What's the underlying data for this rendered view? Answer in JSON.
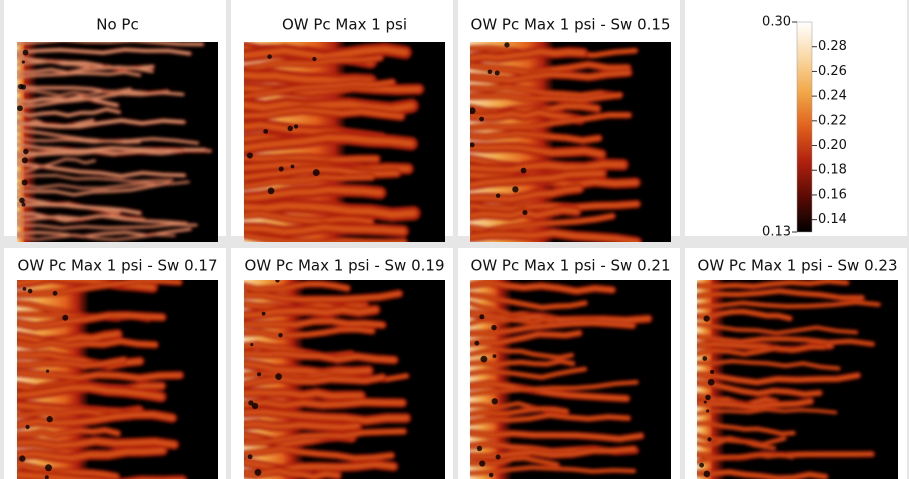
{
  "panels": [
    {
      "title": "No Pc"
    },
    {
      "title": "OW Pc Max 1 psi"
    },
    {
      "title": "OW Pc Max 1 psi - Sw 0.15"
    },
    {
      "title": "OW Pc Max 1 psi - Sw 0.17"
    },
    {
      "title": "OW Pc Max 1 psi - Sw 0.19"
    },
    {
      "title": "OW Pc Max 1 psi - Sw 0.21"
    },
    {
      "title": "OW Pc Max 1 psi - Sw 0.23"
    }
  ],
  "colorbar": {
    "range": [
      {
        "value": 0.13,
        "label": "0.13"
      },
      {
        "value": 0.3,
        "label": "0.30"
      }
    ],
    "ticks": [
      0.28,
      0.26,
      0.24,
      0.22,
      {
        "value": 0.2,
        "label": "0.20"
      },
      0.18,
      0.16,
      0.14
    ],
    "colors": [
      "#000000",
      "#5a0a04",
      "#b0200e",
      "#e0601c",
      "#f2a848",
      "#fad9a6",
      "#ffffff"
    ]
  }
}
